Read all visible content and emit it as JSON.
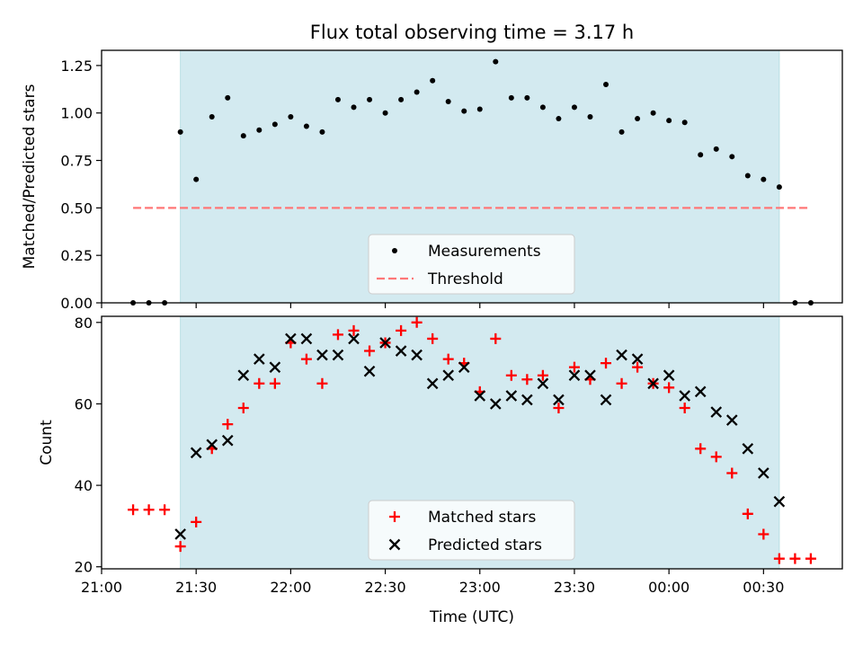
{
  "title": "Flux total observing time = 3.17 h",
  "colors": {
    "observing_span": "#d3eaf0",
    "measurement": "#000000",
    "threshold": "#ff7777",
    "matched": "#ff0000",
    "predicted": "#000000"
  },
  "chart_data": [
    {
      "type": "scatter",
      "ylabel": "Matched/Predicted stars",
      "xlim": [
        "21:00",
        "00:55"
      ],
      "ylim": [
        0,
        1.33
      ],
      "yticks": [
        "0.00",
        "0.25",
        "0.50",
        "0.75",
        "1.00",
        "1.25"
      ],
      "ytick_values": [
        0,
        0.25,
        0.5,
        0.75,
        1.0,
        1.25
      ],
      "observing_span": [
        "21:25",
        "00:35"
      ],
      "threshold": {
        "value": 0.5,
        "from": "21:10",
        "to": "00:45"
      },
      "legend": {
        "placement": "lower-center",
        "entries": [
          "Measurements",
          "Threshold"
        ]
      },
      "series": [
        {
          "name": "Measurements",
          "marker": "dot",
          "points": [
            [
              "21:10",
              0.0
            ],
            [
              "21:15",
              0.0
            ],
            [
              "21:20",
              0.0
            ],
            [
              "21:25",
              0.9
            ],
            [
              "21:30",
              0.65
            ],
            [
              "21:35",
              0.98
            ],
            [
              "21:40",
              1.08
            ],
            [
              "21:45",
              0.88
            ],
            [
              "21:50",
              0.91
            ],
            [
              "21:55",
              0.94
            ],
            [
              "22:00",
              0.98
            ],
            [
              "22:05",
              0.93
            ],
            [
              "22:10",
              0.9
            ],
            [
              "22:15",
              1.07
            ],
            [
              "22:20",
              1.03
            ],
            [
              "22:25",
              1.07
            ],
            [
              "22:30",
              1.0
            ],
            [
              "22:35",
              1.07
            ],
            [
              "22:40",
              1.11
            ],
            [
              "22:45",
              1.17
            ],
            [
              "22:50",
              1.06
            ],
            [
              "22:55",
              1.01
            ],
            [
              "23:00",
              1.02
            ],
            [
              "23:05",
              1.27
            ],
            [
              "23:10",
              1.08
            ],
            [
              "23:15",
              1.08
            ],
            [
              "23:20",
              1.03
            ],
            [
              "23:25",
              0.97
            ],
            [
              "23:30",
              1.03
            ],
            [
              "23:35",
              0.98
            ],
            [
              "23:40",
              1.15
            ],
            [
              "23:45",
              0.9
            ],
            [
              "23:50",
              0.97
            ],
            [
              "23:55",
              1.0
            ],
            [
              "00:00",
              0.96
            ],
            [
              "00:05",
              0.95
            ],
            [
              "00:10",
              0.78
            ],
            [
              "00:15",
              0.81
            ],
            [
              "00:20",
              0.77
            ],
            [
              "00:25",
              0.67
            ],
            [
              "00:30",
              0.65
            ],
            [
              "00:35",
              0.61
            ],
            [
              "00:40",
              0.0
            ],
            [
              "00:45",
              0.0
            ]
          ]
        }
      ]
    },
    {
      "type": "scatter",
      "ylabel": "Count",
      "xlabel": "Time (UTC)",
      "xlim": [
        "21:00",
        "00:55"
      ],
      "ylim": [
        19.5,
        81.5
      ],
      "yticks": [
        "20",
        "40",
        "60",
        "80"
      ],
      "ytick_values": [
        20,
        40,
        60,
        80
      ],
      "xticks": [
        "21:00",
        "21:30",
        "22:00",
        "22:30",
        "23:00",
        "23:30",
        "00:00",
        "00:30"
      ],
      "observing_span": [
        "21:25",
        "00:35"
      ],
      "legend": {
        "placement": "lower-center",
        "entries": [
          "Matched stars",
          "Predicted stars"
        ]
      },
      "series": [
        {
          "name": "Matched stars",
          "marker": "plus",
          "points": [
            [
              "21:10",
              34
            ],
            [
              "21:15",
              34
            ],
            [
              "21:20",
              34
            ],
            [
              "21:25",
              25
            ],
            [
              "21:30",
              31
            ],
            [
              "21:35",
              49
            ],
            [
              "21:40",
              55
            ],
            [
              "21:45",
              59
            ],
            [
              "21:50",
              65
            ],
            [
              "21:55",
              65
            ],
            [
              "22:00",
              75
            ],
            [
              "22:05",
              71
            ],
            [
              "22:10",
              65
            ],
            [
              "22:15",
              77
            ],
            [
              "22:20",
              78
            ],
            [
              "22:25",
              73
            ],
            [
              "22:30",
              75
            ],
            [
              "22:35",
              78
            ],
            [
              "22:40",
              80
            ],
            [
              "22:45",
              76
            ],
            [
              "22:50",
              71
            ],
            [
              "22:55",
              70
            ],
            [
              "23:00",
              63
            ],
            [
              "23:05",
              76
            ],
            [
              "23:10",
              67
            ],
            [
              "23:15",
              66
            ],
            [
              "23:20",
              67
            ],
            [
              "23:25",
              59
            ],
            [
              "23:30",
              69
            ],
            [
              "23:35",
              66
            ],
            [
              "23:40",
              70
            ],
            [
              "23:45",
              65
            ],
            [
              "23:50",
              69
            ],
            [
              "23:55",
              65
            ],
            [
              "00:00",
              64
            ],
            [
              "00:05",
              59
            ],
            [
              "00:10",
              49
            ],
            [
              "00:15",
              47
            ],
            [
              "00:20",
              43
            ],
            [
              "00:25",
              33
            ],
            [
              "00:30",
              28
            ],
            [
              "00:35",
              22
            ],
            [
              "00:40",
              22
            ],
            [
              "00:45",
              22
            ]
          ]
        },
        {
          "name": "Predicted stars",
          "marker": "x",
          "points": [
            [
              "21:25",
              28
            ],
            [
              "21:30",
              48
            ],
            [
              "21:35",
              50
            ],
            [
              "21:40",
              51
            ],
            [
              "21:45",
              67
            ],
            [
              "21:50",
              71
            ],
            [
              "21:55",
              69
            ],
            [
              "22:00",
              76
            ],
            [
              "22:05",
              76
            ],
            [
              "22:10",
              72
            ],
            [
              "22:15",
              72
            ],
            [
              "22:20",
              76
            ],
            [
              "22:25",
              68
            ],
            [
              "22:30",
              75
            ],
            [
              "22:35",
              73
            ],
            [
              "22:40",
              72
            ],
            [
              "22:45",
              65
            ],
            [
              "22:50",
              67
            ],
            [
              "22:55",
              69
            ],
            [
              "23:00",
              62
            ],
            [
              "23:05",
              60
            ],
            [
              "23:10",
              62
            ],
            [
              "23:15",
              61
            ],
            [
              "23:20",
              65
            ],
            [
              "23:25",
              61
            ],
            [
              "23:30",
              67
            ],
            [
              "23:35",
              67
            ],
            [
              "23:40",
              61
            ],
            [
              "23:45",
              72
            ],
            [
              "23:50",
              71
            ],
            [
              "23:55",
              65
            ],
            [
              "00:00",
              67
            ],
            [
              "00:05",
              62
            ],
            [
              "00:10",
              63
            ],
            [
              "00:15",
              58
            ],
            [
              "00:20",
              56
            ],
            [
              "00:25",
              49
            ],
            [
              "00:30",
              43
            ],
            [
              "00:35",
              36
            ]
          ]
        }
      ]
    }
  ]
}
